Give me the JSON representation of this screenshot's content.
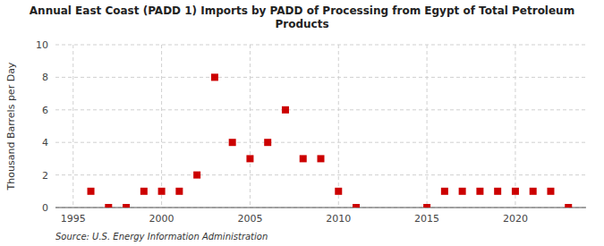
{
  "chart_data": {
    "type": "scatter",
    "title": "Annual East Coast (PADD 1) Imports by PADD of Processing from Egypt of Total Petroleum\nProducts",
    "ylabel": "Thousand Barrels per Day",
    "source": "Source: U.S. Energy Information Administration",
    "x": [
      1996,
      1997,
      1998,
      1999,
      2000,
      2001,
      2002,
      2003,
      2004,
      2005,
      2006,
      2007,
      2008,
      2009,
      2010,
      2011,
      2015,
      2016,
      2017,
      2018,
      2019,
      2020,
      2021,
      2022,
      2023
    ],
    "values": [
      1,
      0,
      0,
      1,
      1,
      1,
      2,
      8,
      4,
      3,
      4,
      6,
      3,
      3,
      1,
      0,
      0,
      1,
      1,
      1,
      1,
      1,
      1,
      1,
      0
    ],
    "color": "#cc0000",
    "marker": "square",
    "xlim": [
      1994,
      2024
    ],
    "ylim": [
      0,
      10
    ],
    "xticks": [
      1995,
      2000,
      2005,
      2010,
      2015,
      2020
    ],
    "yticks": [
      0,
      2,
      4,
      6,
      8,
      10
    ],
    "grid": true
  }
}
